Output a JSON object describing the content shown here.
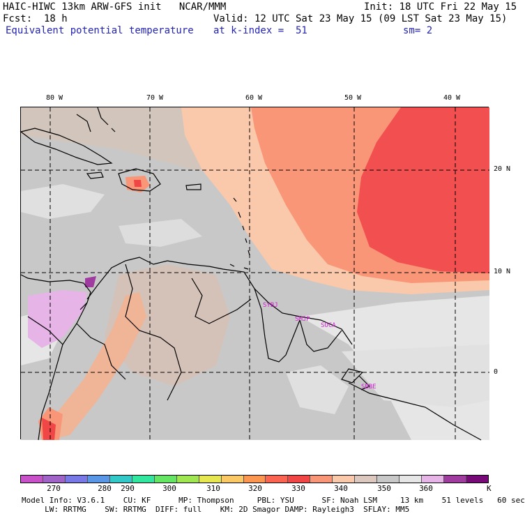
{
  "header": {
    "title": "HAIC-HIWC 13km ARW-GFS init   NCAR/MMM",
    "init": "Init: 18 UTC Fri 22 May 15",
    "fcst_label": "Fcst:",
    "fcst_value": "18 h",
    "valid": "Valid: 12 UTC Sat 23 May 15 (09 LST Sat 23 May 15)",
    "field": "Equivalent potential temperature",
    "level": "at k-index =  51",
    "smooth": "sm= 2"
  },
  "map": {
    "lon_labels": [
      "80 W",
      "70 W",
      "60 W",
      "50 W",
      "40 W"
    ],
    "lat_labels": [
      "20 N",
      "10 N",
      "0"
    ],
    "stations": [
      "SYBJ",
      "SMJP",
      "SOCA",
      "SBBE"
    ]
  },
  "colorbar": {
    "colors": [
      "#c850c8",
      "#a064c8",
      "#7878e6",
      "#5a96e6",
      "#32c8c8",
      "#32e6a0",
      "#64e664",
      "#a0e650",
      "#e6e650",
      "#fac864",
      "#fa9650",
      "#fa6450",
      "#f04646",
      "#fa9678",
      "#fac8aa",
      "#dcc8be",
      "#c8c8c8",
      "#e6e6e6",
      "#e6b4e6",
      "#a03ca0",
      "#780a78"
    ],
    "ticks": [
      "270",
      "280",
      "290",
      "300",
      "310",
      "320",
      "330",
      "340",
      "350",
      "360"
    ],
    "unit": "K"
  },
  "footer": {
    "line1": "Model Info: V3.6.1    CU: KF      MP: Thompson     PBL: YSU      SF: Noah LSM     13 km    51 levels   60 sec",
    "line2": "     LW: RRTMG    SW: RRTMG  DIFF: full    KM: 2D Smagor DAMP: Rayleigh3  SFLAY: MM5"
  }
}
